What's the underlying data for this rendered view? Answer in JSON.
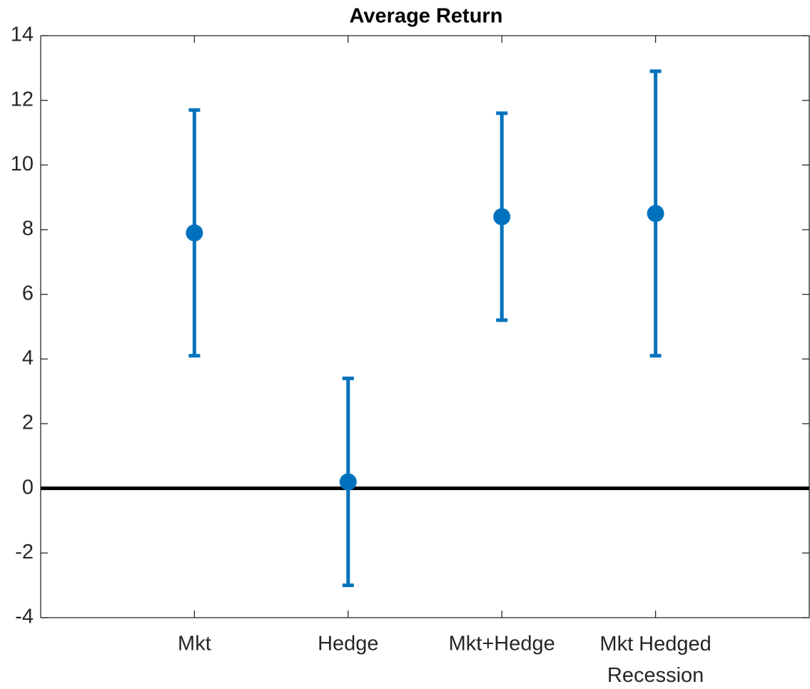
{
  "chart_data": {
    "type": "errorbar",
    "title": "Average Return",
    "categories": [
      "Mkt",
      "Hedge",
      "Mkt+Hedge",
      [
        "Mkt Hedged",
        "Recession"
      ]
    ],
    "values": [
      7.9,
      0.2,
      8.4,
      8.5
    ],
    "errors": [
      3.8,
      3.2,
      3.2,
      4.4
    ],
    "color": "#0072bd",
    "reference_line": 0,
    "ylim": [
      -4,
      14
    ],
    "yticks": [
      -4,
      -2,
      0,
      2,
      4,
      6,
      8,
      10,
      12,
      14
    ]
  }
}
